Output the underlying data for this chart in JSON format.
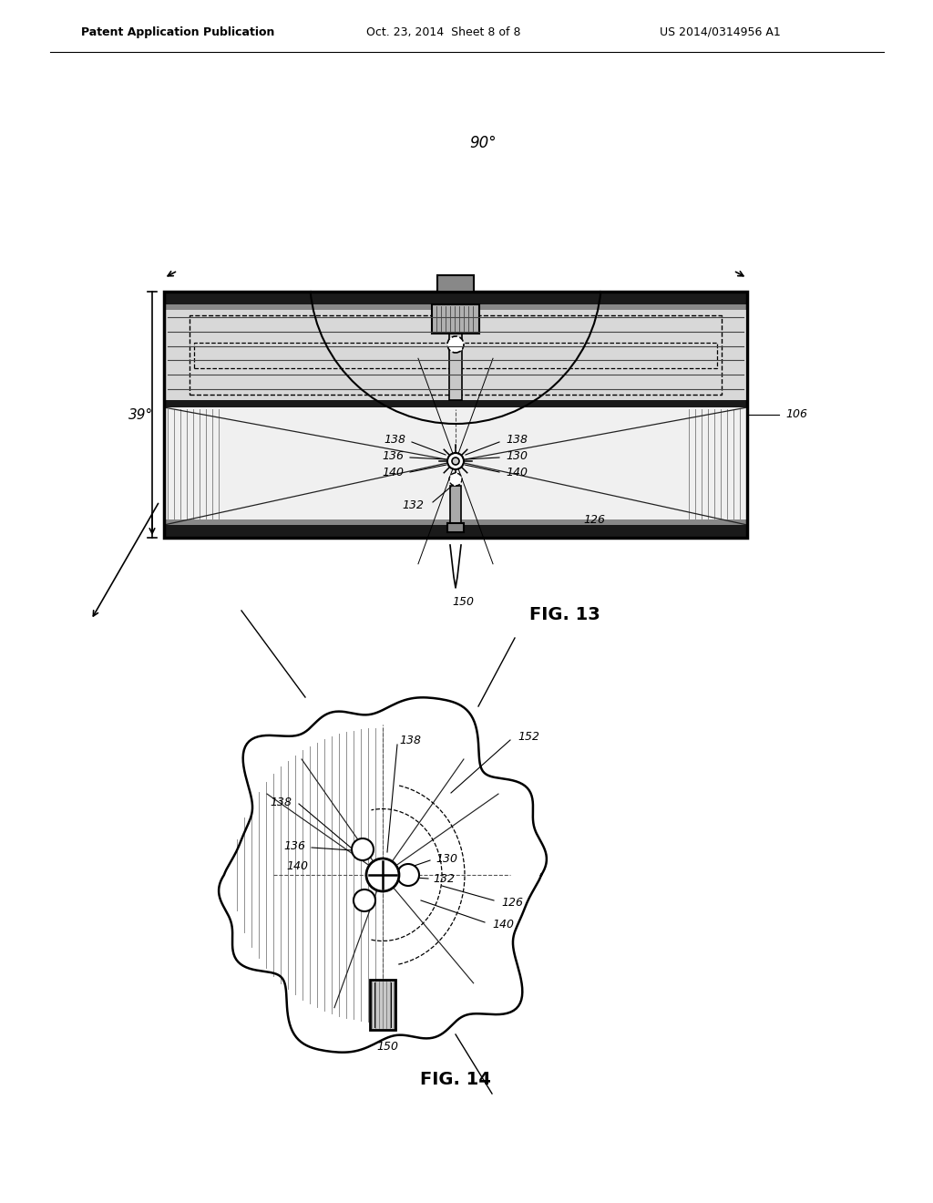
{
  "bg_color": "#ffffff",
  "header_left": "Patent Application Publication",
  "header_mid": "Oct. 23, 2014  Sheet 8 of 8",
  "header_right": "US 2014/0314956 A1",
  "fig13_label": "FIG. 13",
  "fig14_label": "FIG. 14",
  "angle_90": "90°",
  "angle_39": "39°",
  "lbl_138": "138",
  "lbl_136": "136",
  "lbl_130": "130",
  "lbl_140": "140",
  "lbl_132": "132",
  "lbl_126": "126",
  "lbl_106": "106",
  "lbl_150": "150",
  "lbl_152": "152"
}
